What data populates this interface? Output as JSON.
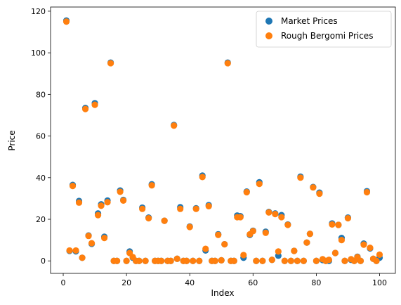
{
  "chart_data": {
    "type": "scatter",
    "title": "",
    "xlabel": "Index",
    "ylabel": "Price",
    "xlim": [
      -4,
      105
    ],
    "ylim": [
      -6,
      122
    ],
    "xticks": [
      0,
      20,
      40,
      60,
      80,
      100
    ],
    "yticks": [
      0,
      20,
      40,
      60,
      80,
      100,
      120
    ],
    "grid": false,
    "legend": {
      "placement": "top-right"
    },
    "series": [
      {
        "name": "Market Prices",
        "color": "#1f77b4",
        "x": [
          1,
          2,
          3,
          4,
          5,
          6,
          7,
          8,
          9,
          10,
          11,
          12,
          13,
          14,
          15,
          16,
          17,
          18,
          19,
          20,
          21,
          22,
          23,
          24,
          25,
          26,
          27,
          28,
          29,
          30,
          31,
          32,
          33,
          34,
          35,
          36,
          37,
          38,
          39,
          40,
          41,
          42,
          43,
          44,
          45,
          46,
          47,
          48,
          49,
          50,
          51,
          52,
          53,
          54,
          55,
          56,
          57,
          58,
          59,
          60,
          61,
          62,
          63,
          64,
          65,
          66,
          67,
          68,
          69,
          70,
          71,
          72,
          73,
          74,
          75,
          76,
          77,
          78,
          79,
          80,
          81,
          82,
          83,
          84,
          85,
          86,
          87,
          88,
          89,
          90,
          91,
          92,
          93,
          94,
          95,
          96,
          97,
          98,
          99,
          100
        ],
        "values": [
          115.5,
          4.8,
          36.5,
          4.6,
          28.8,
          1.5,
          73.5,
          12.2,
          8.2,
          75.8,
          22.8,
          27.2,
          11.6,
          29.0,
          95.3,
          0.0,
          0.0,
          33.8,
          29.3,
          0.0,
          4.5,
          1.5,
          0.0,
          0.0,
          25.6,
          0.0,
          20.8,
          36.8,
          0.0,
          0.0,
          0.0,
          19.3,
          0.0,
          0.0,
          65.3,
          1.0,
          25.8,
          0.0,
          0.0,
          16.5,
          0.0,
          25.3,
          0.0,
          41.0,
          5.0,
          26.8,
          0.0,
          0.0,
          12.8,
          0.3,
          8.0,
          95.3,
          0.0,
          0.0,
          21.8,
          21.5,
          1.5,
          33.3,
          12.5,
          14.5,
          0.0,
          37.8,
          0.0,
          14.0,
          23.5,
          0.5,
          22.8,
          2.5,
          22.0,
          0.0,
          17.5,
          0.0,
          4.8,
          0.0,
          40.5,
          0.0,
          8.8,
          13.0,
          35.5,
          0.0,
          32.8,
          0.4,
          0.0,
          0.0,
          18.0,
          3.8,
          17.3,
          11.0,
          0.0,
          20.8,
          0.5,
          0.0,
          2.0,
          0.0,
          8.3,
          33.5,
          6.0,
          1.0,
          0.0,
          1.5
        ]
      },
      {
        "name": "Rough Bergomi Prices",
        "color": "#ff7f0e",
        "x": [
          1,
          2,
          3,
          4,
          5,
          6,
          7,
          8,
          9,
          10,
          11,
          12,
          13,
          14,
          15,
          16,
          17,
          18,
          19,
          20,
          21,
          22,
          23,
          24,
          25,
          26,
          27,
          28,
          29,
          30,
          31,
          32,
          33,
          34,
          35,
          36,
          37,
          38,
          39,
          40,
          41,
          42,
          43,
          44,
          45,
          46,
          47,
          48,
          49,
          50,
          51,
          52,
          53,
          54,
          55,
          56,
          57,
          58,
          59,
          60,
          61,
          62,
          63,
          64,
          65,
          66,
          67,
          68,
          69,
          70,
          71,
          72,
          73,
          74,
          75,
          76,
          77,
          78,
          79,
          80,
          81,
          82,
          83,
          84,
          85,
          86,
          87,
          88,
          89,
          90,
          91,
          92,
          93,
          94,
          95,
          96,
          97,
          98,
          99,
          100
        ],
        "values": [
          115.0,
          5.0,
          36.0,
          5.0,
          28.0,
          1.5,
          73.0,
          12.0,
          8.5,
          75.0,
          22.0,
          26.5,
          11.0,
          28.2,
          95.0,
          0.0,
          0.0,
          33.2,
          29.0,
          0.0,
          3.8,
          1.8,
          0.0,
          0.0,
          25.0,
          0.0,
          20.5,
          36.3,
          0.0,
          0.0,
          0.0,
          19.3,
          0.0,
          0.0,
          65.0,
          1.0,
          25.0,
          0.0,
          0.0,
          16.3,
          0.0,
          25.0,
          0.0,
          40.3,
          5.8,
          26.3,
          0.0,
          0.0,
          12.5,
          0.3,
          8.0,
          95.0,
          0.0,
          0.0,
          21.0,
          21.0,
          2.8,
          33.0,
          12.8,
          14.3,
          0.0,
          37.0,
          0.0,
          13.5,
          23.3,
          0.5,
          22.5,
          4.5,
          21.0,
          0.0,
          17.3,
          0.0,
          4.8,
          0.0,
          40.0,
          0.0,
          8.8,
          13.0,
          35.3,
          0.0,
          32.3,
          0.8,
          0.0,
          0.5,
          17.5,
          3.8,
          17.3,
          10.0,
          0.0,
          20.5,
          0.8,
          0.0,
          1.8,
          0.0,
          7.8,
          33.0,
          6.3,
          1.0,
          0.0,
          3.0
        ]
      }
    ]
  }
}
